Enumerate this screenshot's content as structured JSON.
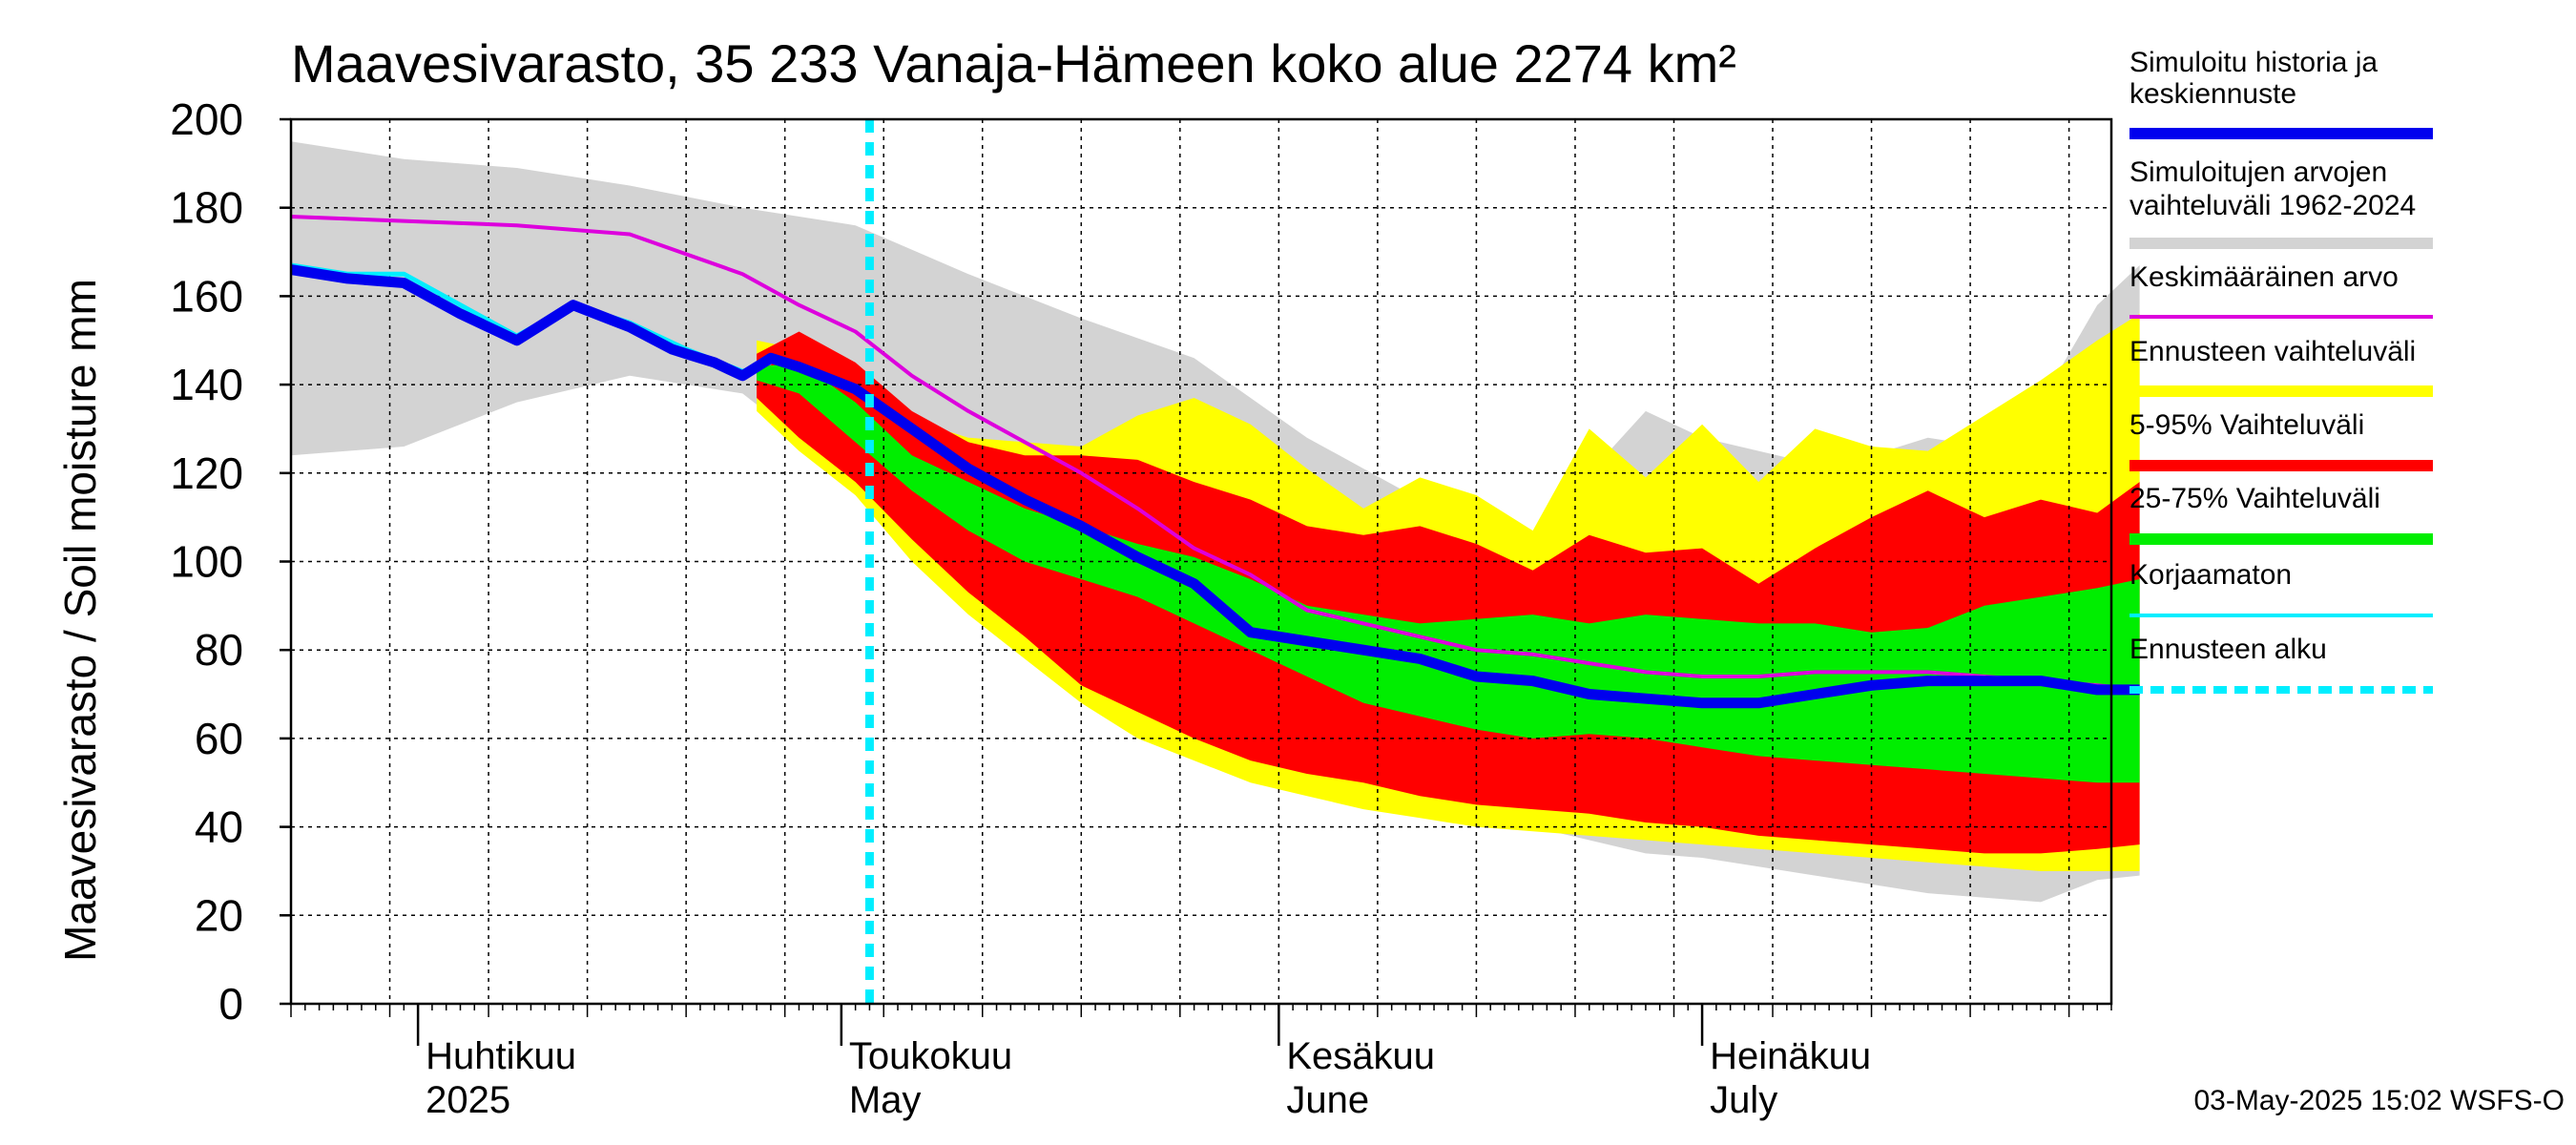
{
  "chart_data": {
    "type": "area",
    "title": "Maavesivarasto, 35 233 Vanaja-Hämeen koko alue 2274 km²",
    "ylabel": "Maavesivarasto / Soil moisture   mm",
    "ylim": [
      0,
      200
    ],
    "yticks": [
      0,
      20,
      40,
      60,
      80,
      100,
      120,
      140,
      160,
      180,
      200
    ],
    "x_start": "2025-03-23",
    "x_end": "2025-07-30",
    "forecast_start": "2025-05-03",
    "months": [
      {
        "fi": "Huhtikuu",
        "en": "2025",
        "date": "2025-04-01"
      },
      {
        "fi": "Toukokuu",
        "en": "May",
        "date": "2025-05-01"
      },
      {
        "fi": "Kesäkuu",
        "en": "June",
        "date": "2025-06-01"
      },
      {
        "fi": "Heinäkuu",
        "en": "July",
        "date": "2025-07-01"
      }
    ],
    "series": [
      {
        "name": "Simuloitujen arvojen vaihteluväli 1962-2024 (upper)",
        "day_offsets": [
          0,
          8,
          16,
          24,
          32,
          40,
          48,
          56,
          64,
          72,
          80,
          88,
          96,
          100,
          104,
          108,
          112,
          116,
          120,
          124,
          128,
          131
        ],
        "values": [
          195,
          191,
          189,
          185,
          180,
          176,
          165,
          155,
          146,
          128,
          114,
          106,
          134,
          128,
          125,
          122,
          124,
          128,
          126,
          136,
          158,
          167
        ]
      },
      {
        "name": "Simuloitujen arvojen vaihteluväli 1962-2024 (lower)",
        "day_offsets": [
          0,
          8,
          16,
          24,
          32,
          40,
          48,
          56,
          64,
          72,
          80,
          88,
          96,
          100,
          104,
          108,
          112,
          116,
          120,
          124,
          128,
          131
        ],
        "values": [
          124,
          126,
          136,
          142,
          138,
          118,
          100,
          80,
          62,
          55,
          48,
          40,
          34,
          33,
          31,
          29,
          27,
          25,
          24,
          23,
          28,
          29
        ]
      },
      {
        "name": "Ennusteen vaihteluväli (upper)",
        "day_offsets": [
          33,
          36,
          40,
          44,
          48,
          52,
          56,
          60,
          64,
          68,
          72,
          76,
          80,
          84,
          88,
          92,
          96,
          100,
          104,
          108,
          112,
          116,
          120,
          124,
          128,
          131
        ],
        "values": [
          150,
          148,
          140,
          132,
          128,
          127,
          126,
          133,
          137,
          131,
          121,
          112,
          119,
          115,
          107,
          130,
          119,
          131,
          118,
          130,
          126,
          125,
          133,
          141,
          150,
          156
        ]
      },
      {
        "name": "5-95% Vaihteluväli (upper)",
        "day_offsets": [
          33,
          36,
          40,
          44,
          48,
          52,
          56,
          60,
          64,
          68,
          72,
          76,
          80,
          84,
          88,
          92,
          96,
          100,
          104,
          108,
          112,
          116,
          120,
          124,
          128,
          131
        ],
        "values": [
          147,
          152,
          145,
          134,
          127,
          124,
          124,
          123,
          118,
          114,
          108,
          106,
          108,
          104,
          98,
          106,
          102,
          103,
          95,
          103,
          110,
          116,
          110,
          114,
          111,
          118
        ]
      },
      {
        "name": "25-75% Vaihteluväli (upper)",
        "day_offsets": [
          33,
          36,
          40,
          44,
          48,
          52,
          56,
          60,
          64,
          68,
          72,
          76,
          80,
          84,
          88,
          92,
          96,
          100,
          104,
          108,
          112,
          116,
          120,
          124,
          128,
          131
        ],
        "values": [
          144,
          145,
          136,
          124,
          118,
          112,
          108,
          104,
          101,
          96,
          90,
          88,
          86,
          87,
          88,
          86,
          88,
          87,
          86,
          86,
          84,
          85,
          90,
          92,
          94,
          96
        ]
      },
      {
        "name": "25-75% Vaihteluväli (lower)",
        "day_offsets": [
          33,
          36,
          40,
          44,
          48,
          52,
          56,
          60,
          64,
          68,
          72,
          76,
          80,
          84,
          88,
          92,
          96,
          100,
          104,
          108,
          112,
          116,
          120,
          124,
          128,
          131
        ],
        "values": [
          141,
          138,
          127,
          116,
          107,
          100,
          96,
          92,
          86,
          80,
          74,
          68,
          65,
          62,
          60,
          61,
          60,
          58,
          56,
          55,
          54,
          53,
          52,
          51,
          50,
          50
        ]
      },
      {
        "name": "5-95% Vaihteluväli (lower)",
        "day_offsets": [
          33,
          36,
          40,
          44,
          48,
          52,
          56,
          60,
          64,
          68,
          72,
          76,
          80,
          84,
          88,
          92,
          96,
          100,
          104,
          108,
          112,
          116,
          120,
          124,
          128,
          131
        ],
        "values": [
          137,
          128,
          118,
          105,
          93,
          83,
          72,
          66,
          60,
          55,
          52,
          50,
          47,
          45,
          44,
          43,
          41,
          40,
          38,
          37,
          36,
          35,
          34,
          34,
          35,
          36
        ]
      },
      {
        "name": "Ennusteen vaihteluväli (lower)",
        "day_offsets": [
          33,
          36,
          40,
          44,
          48,
          52,
          56,
          60,
          64,
          68,
          72,
          76,
          80,
          84,
          88,
          92,
          96,
          100,
          104,
          108,
          112,
          116,
          120,
          124,
          128,
          131
        ],
        "values": [
          134,
          125,
          115,
          100,
          88,
          78,
          68,
          60,
          55,
          50,
          47,
          44,
          42,
          40,
          39,
          38,
          37,
          36,
          35,
          34,
          33,
          32,
          31,
          30,
          30,
          30
        ]
      },
      {
        "name": "Simuloitu historia ja keskiennuste",
        "day_offsets": [
          0,
          4,
          8,
          12,
          16,
          20,
          24,
          27,
          28,
          30,
          32,
          34,
          36,
          40,
          44,
          48,
          52,
          56,
          60,
          64,
          68,
          72,
          76,
          80,
          84,
          88,
          92,
          96,
          100,
          104,
          108,
          112,
          116,
          120,
          124,
          128,
          131
        ],
        "values": [
          166,
          164,
          163,
          156,
          150,
          158,
          153,
          148,
          147,
          145,
          142,
          146,
          144,
          139,
          130,
          121,
          114,
          108,
          101,
          95,
          84,
          82,
          80,
          78,
          74,
          73,
          70,
          69,
          68,
          68,
          70,
          72,
          73,
          73,
          73,
          71,
          71
        ]
      },
      {
        "name": "Keskimääräinen arvo",
        "day_offsets": [
          0,
          8,
          16,
          24,
          32,
          36,
          40,
          44,
          48,
          52,
          56,
          60,
          64,
          68,
          72,
          76,
          80,
          84,
          88,
          92,
          96,
          100,
          104,
          108,
          112,
          116,
          120,
          124,
          128,
          131
        ],
        "values": [
          178,
          177,
          176,
          174,
          165,
          158,
          152,
          142,
          134,
          127,
          120,
          112,
          103,
          97,
          89,
          86,
          83,
          80,
          79,
          77,
          75,
          74,
          74,
          75,
          75,
          75,
          74,
          73,
          72,
          71
        ]
      },
      {
        "name": "Korjaamaton",
        "day_offsets": [
          0,
          4,
          8,
          12,
          16,
          20,
          24,
          28,
          32,
          34
        ],
        "values": [
          167,
          165,
          165,
          158,
          151,
          158,
          154,
          148,
          143,
          145
        ]
      }
    ],
    "legend": [
      {
        "label": "Simuloitu historia ja keskiennuste",
        "color": "#0000ee"
      },
      {
        "label": "Simuloitujen arvojen vaihteluväli 1962-2024",
        "color": "#d3d3d3"
      },
      {
        "label": "Keskimääräinen arvo",
        "color": "#dd00dd"
      },
      {
        "label": "Ennusteen vaihteluväli",
        "color": "#ffff00"
      },
      {
        "label": "5-95% Vaihteluväli",
        "color": "#ff0000"
      },
      {
        "label": "25-75% Vaihteluväli",
        "color": "#00ee00"
      },
      {
        "label": "Korjaamaton",
        "color": "#00eeff"
      },
      {
        "label": "Ennusteen alku",
        "color": "#00eeff"
      }
    ],
    "legend_lines": [
      [
        "Simuloitu historia ja",
        "keskiennuste"
      ],
      [
        "Simuloitujen arvojen",
        "vaihteluväli 1962-2024"
      ],
      [
        "Keskimääräinen arvo"
      ],
      [
        "Ennusteen vaihteluväli"
      ],
      [
        "5-95% Vaihteluväli"
      ],
      [
        "25-75% Vaihteluväli"
      ],
      [
        "Korjaamaton"
      ],
      [
        "Ennusteen alku"
      ]
    ],
    "footer": "03-May-2025 15:02 WSFS-O"
  }
}
